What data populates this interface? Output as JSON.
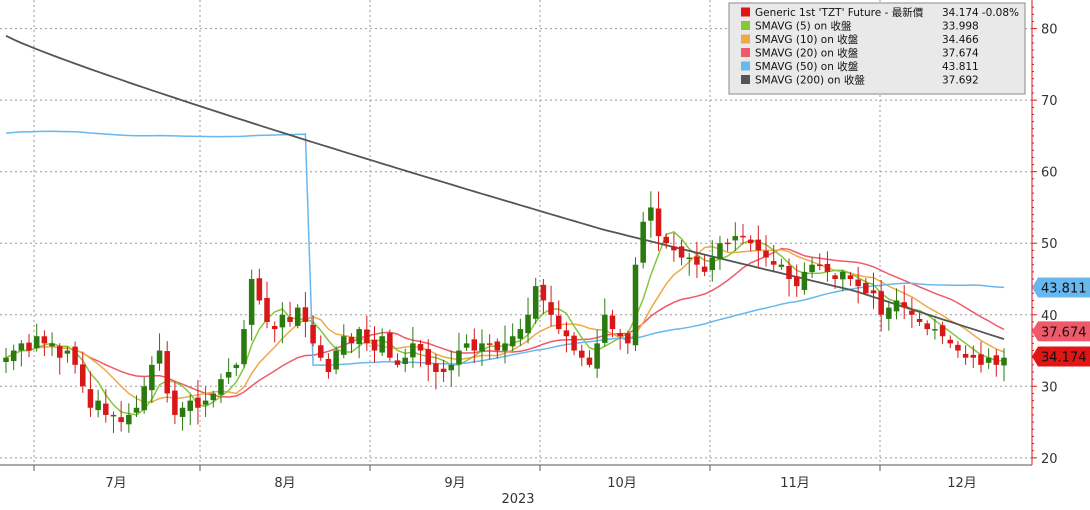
{
  "chart_data": {
    "type": "candlestick",
    "title": "",
    "xlabel": "2023",
    "ylabel": "",
    "ylim": [
      19,
      84
    ],
    "y_ticks": [
      20,
      30,
      40,
      50,
      60,
      70,
      80
    ],
    "x_ticks": [
      {
        "label": "7月",
        "index": 23
      },
      {
        "label": "8月",
        "index": 46
      },
      {
        "label": "9月",
        "index": 69
      },
      {
        "label": "10月",
        "index": 92
      },
      {
        "label": "11月",
        "index": 115
      },
      {
        "label": "12月",
        "index": 138
      }
    ],
    "x_ticks_minor": [
      0,
      23,
      46,
      69,
      92,
      115,
      138
    ],
    "grid": true,
    "legend_position": "top-right",
    "colors": {
      "up": "#2a7a10",
      "down": "#d81818",
      "sma5": "#84c83a",
      "sma10": "#f0a94a",
      "sma20": "#ef5a6a",
      "sma50": "#68b8ee",
      "sma200": "#555555",
      "right_axis": "#e01515"
    },
    "legend": [
      {
        "label": "Generic 1st 'TZT' Future - 最新價",
        "value": "34.174",
        "change": "-0.08%",
        "color": "#e01515"
      },
      {
        "label": "SMAVG (5)  on 收盤",
        "value": "33.998",
        "color": "#84c83a"
      },
      {
        "label": "SMAVG (10)  on 收盤",
        "value": "34.466",
        "color": "#f0a94a"
      },
      {
        "label": "SMAVG (20)  on 收盤",
        "value": "37.674",
        "color": "#ef5a6a"
      },
      {
        "label": "SMAVG (50)  on 收盤",
        "value": "43.811",
        "color": "#68b8ee"
      },
      {
        "label": "SMAVG (200)  on 收盤",
        "value": "37.692",
        "color": "#555555"
      }
    ],
    "price_tags": [
      {
        "label": "43.811",
        "value": 43.811,
        "color": "#68b8ee",
        "key": "sma50"
      },
      {
        "label": "37.674",
        "value": 37.674,
        "color": "#ef5a6a",
        "key": "sma20"
      },
      {
        "label": "34.174",
        "value": 34.174,
        "color": "#e01515",
        "key": "last"
      }
    ],
    "closes": [
      34,
      35,
      36,
      35,
      37,
      36,
      36,
      34,
      35,
      33,
      30,
      27,
      28,
      26,
      26,
      25,
      26,
      27,
      30,
      33,
      35,
      29,
      26,
      27,
      28,
      27,
      28,
      29,
      31,
      32,
      33,
      38,
      45,
      42,
      39,
      38,
      40,
      39,
      41,
      39,
      36,
      34,
      32,
      35,
      37,
      36,
      38,
      36,
      35,
      37,
      34,
      33,
      34,
      36,
      35,
      33,
      32,
      32,
      33,
      35,
      36,
      35,
      36,
      36,
      35,
      36,
      37,
      38,
      40,
      44,
      42,
      40,
      38,
      37,
      35,
      34,
      33,
      36,
      40,
      38,
      37,
      36,
      47,
      53,
      55,
      51,
      50,
      49,
      48,
      48,
      47,
      46,
      48,
      50,
      50,
      51,
      51,
      50,
      49,
      48,
      47,
      47,
      45,
      44,
      46,
      47,
      47,
      46,
      45,
      46,
      45,
      44,
      43,
      43,
      40,
      41,
      42,
      41,
      40,
      39,
      38,
      38,
      37,
      36,
      35,
      34,
      34,
      33,
      34,
      33,
      34
    ]
  }
}
